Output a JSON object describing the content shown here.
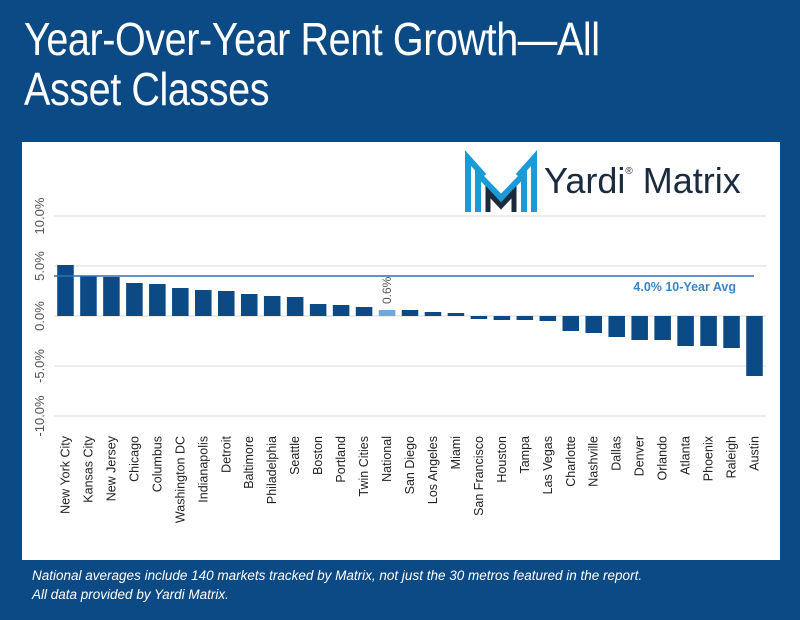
{
  "title": "Year-Over-Year Rent Growth—All Asset Classes",
  "logo": {
    "text": "Yardi",
    "text2": "Matrix",
    "mark": "®"
  },
  "footnote": [
    "National averages include 140 markets tracked by Matrix, not just the 30 metros featured in the report.",
    "All data provided by Yardi Matrix."
  ],
  "colors": {
    "background": "#0c4a85",
    "bar": "#0c4a85",
    "national_bar": "#6fa8dc",
    "avg_line": "#2d6fb5",
    "avg_label": "#3a84c9",
    "grid": "#d9d9d9",
    "logo_teal": "#1a9ad6",
    "logo_navy": "#1a2a3f"
  },
  "chart_data": {
    "type": "bar",
    "title": "Year-Over-Year Rent Growth—All Asset Classes",
    "categories": [
      "New York City",
      "Kansas City",
      "New Jersey",
      "Chicago",
      "Columbus",
      "Washington DC",
      "Indianapolis",
      "Detroit",
      "Baltimore",
      "Philadelphia",
      "Seattle",
      "Boston",
      "Portland",
      "Twin Cities",
      "National",
      "San Diego",
      "Los Angeles",
      "Miami",
      "San Francisco",
      "Houston",
      "Tampa",
      "Las Vegas",
      "Charlotte",
      "Nashville",
      "Dallas",
      "Denver",
      "Orlando",
      "Atlanta",
      "Phoenix",
      "Raleigh",
      "Austin"
    ],
    "values": [
      5.1,
      4.0,
      3.9,
      3.3,
      3.2,
      2.8,
      2.6,
      2.5,
      2.2,
      2.0,
      1.9,
      1.2,
      1.1,
      0.9,
      0.6,
      0.6,
      0.4,
      0.3,
      -0.3,
      -0.4,
      -0.4,
      -0.5,
      -1.5,
      -1.7,
      -2.1,
      -2.4,
      -2.4,
      -3.0,
      -3.0,
      -3.2,
      -6.0
    ],
    "highlight": "National",
    "highlight_label": "0.6%",
    "ylim": [
      -10,
      10
    ],
    "yticks": [
      "10.0%",
      "5.0%",
      "0.0%",
      "-5.0%",
      "-10.0%"
    ],
    "ytick_values": [
      10,
      5,
      0,
      -5,
      -10
    ],
    "reference_line": {
      "value": 4.0,
      "label": "4.0% 10-Year Avg"
    },
    "grid": true,
    "legend": "none"
  }
}
